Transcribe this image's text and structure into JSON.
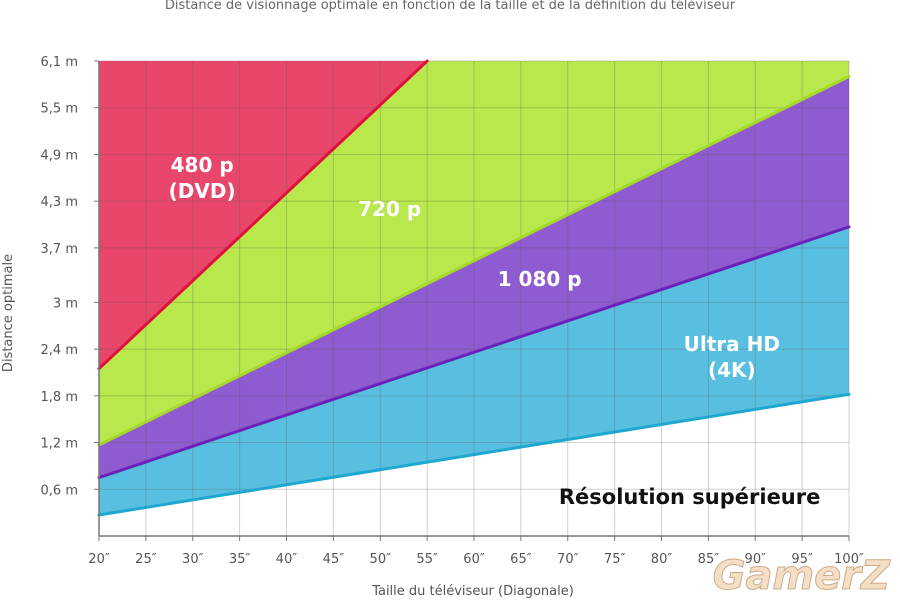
{
  "chart_data": {
    "type": "area",
    "title": "Distance de visionnage optimale en fonction de la taille et de la définition du téléviseur",
    "xlabel": "Taille du téléviseur (Diagonale)",
    "ylabel": "Distance optimale",
    "x_ticks": [
      "20″",
      "25″",
      "30″",
      "35″",
      "40″",
      "45″",
      "50″",
      "55″",
      "60″",
      "65″",
      "70″",
      "75″",
      "80″",
      "85″",
      "90″",
      "95″",
      "100″"
    ],
    "y_ticks": [
      "0,6 m",
      "1,2 m",
      "1,8 m",
      "2,4 m",
      "3 m",
      "3,7 m",
      "4,3 m",
      "4,9 m",
      "5,5 m",
      "6,1 m"
    ],
    "xlim": [
      20,
      100
    ],
    "ylim": [
      0,
      6.1
    ],
    "grid": true,
    "boundaries": [
      {
        "color": "#e0103c",
        "x": [
          20,
          55
        ],
        "y": [
          2.15,
          6.1
        ]
      },
      {
        "color": "#a6d92a",
        "x": [
          20,
          100
        ],
        "y": [
          1.17,
          5.9
        ]
      },
      {
        "color": "#6a23b6",
        "x": [
          20,
          100
        ],
        "y": [
          0.75,
          3.97
        ]
      },
      {
        "color": "#1ea7cf",
        "x": [
          20,
          100
        ],
        "y": [
          0.27,
          1.82
        ]
      }
    ],
    "regions": [
      {
        "label_lines": [
          "480 p",
          "(DVD)"
        ],
        "color": "#e8466a",
        "label_x": 31,
        "label_y": 4.6
      },
      {
        "label_lines": [
          "720 p"
        ],
        "color": "#b9e84c",
        "label_x": 51,
        "label_y": 4.2
      },
      {
        "label_lines": [
          "1 080 p"
        ],
        "color": "#8f5bd0",
        "label_x": 67,
        "label_y": 3.3
      },
      {
        "label_lines": [
          "Ultra HD",
          "(4K)"
        ],
        "color": "#58bfe0",
        "label_x": 87.5,
        "label_y": 2.3
      },
      {
        "label_lines": [
          "Résolution supérieure"
        ],
        "color": "#111111",
        "label_x": 83,
        "label_y": 0.5
      }
    ]
  },
  "watermark": "GamerZ"
}
